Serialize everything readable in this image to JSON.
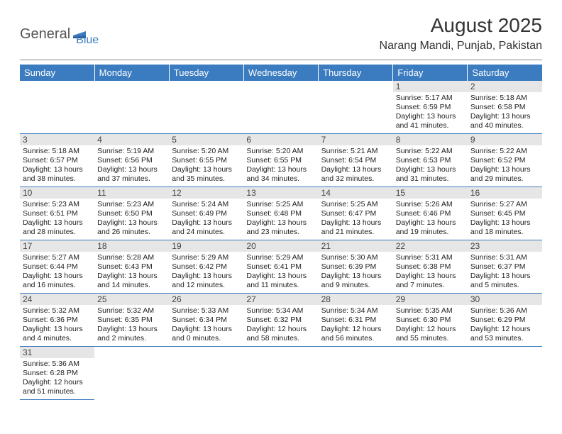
{
  "logo": {
    "part1": "General",
    "part2": "Blue"
  },
  "title": "August 2025",
  "location": "Narang Mandi, Punjab, Pakistan",
  "colors": {
    "header_bg": "#3b7bbf",
    "header_text": "#ffffff",
    "daynum_bg": "#e6e6e6",
    "cell_border": "#3b7bbf",
    "logo_gray": "#555555",
    "logo_blue": "#3b7bbf"
  },
  "weekdays": [
    "Sunday",
    "Monday",
    "Tuesday",
    "Wednesday",
    "Thursday",
    "Friday",
    "Saturday"
  ],
  "weeks": [
    [
      null,
      null,
      null,
      null,
      null,
      {
        "n": "1",
        "sr": "5:17 AM",
        "ss": "6:59 PM",
        "dl": "13 hours and 41 minutes."
      },
      {
        "n": "2",
        "sr": "5:18 AM",
        "ss": "6:58 PM",
        "dl": "13 hours and 40 minutes."
      }
    ],
    [
      {
        "n": "3",
        "sr": "5:18 AM",
        "ss": "6:57 PM",
        "dl": "13 hours and 38 minutes."
      },
      {
        "n": "4",
        "sr": "5:19 AM",
        "ss": "6:56 PM",
        "dl": "13 hours and 37 minutes."
      },
      {
        "n": "5",
        "sr": "5:20 AM",
        "ss": "6:55 PM",
        "dl": "13 hours and 35 minutes."
      },
      {
        "n": "6",
        "sr": "5:20 AM",
        "ss": "6:55 PM",
        "dl": "13 hours and 34 minutes."
      },
      {
        "n": "7",
        "sr": "5:21 AM",
        "ss": "6:54 PM",
        "dl": "13 hours and 32 minutes."
      },
      {
        "n": "8",
        "sr": "5:22 AM",
        "ss": "6:53 PM",
        "dl": "13 hours and 31 minutes."
      },
      {
        "n": "9",
        "sr": "5:22 AM",
        "ss": "6:52 PM",
        "dl": "13 hours and 29 minutes."
      }
    ],
    [
      {
        "n": "10",
        "sr": "5:23 AM",
        "ss": "6:51 PM",
        "dl": "13 hours and 28 minutes."
      },
      {
        "n": "11",
        "sr": "5:23 AM",
        "ss": "6:50 PM",
        "dl": "13 hours and 26 minutes."
      },
      {
        "n": "12",
        "sr": "5:24 AM",
        "ss": "6:49 PM",
        "dl": "13 hours and 24 minutes."
      },
      {
        "n": "13",
        "sr": "5:25 AM",
        "ss": "6:48 PM",
        "dl": "13 hours and 23 minutes."
      },
      {
        "n": "14",
        "sr": "5:25 AM",
        "ss": "6:47 PM",
        "dl": "13 hours and 21 minutes."
      },
      {
        "n": "15",
        "sr": "5:26 AM",
        "ss": "6:46 PM",
        "dl": "13 hours and 19 minutes."
      },
      {
        "n": "16",
        "sr": "5:27 AM",
        "ss": "6:45 PM",
        "dl": "13 hours and 18 minutes."
      }
    ],
    [
      {
        "n": "17",
        "sr": "5:27 AM",
        "ss": "6:44 PM",
        "dl": "13 hours and 16 minutes."
      },
      {
        "n": "18",
        "sr": "5:28 AM",
        "ss": "6:43 PM",
        "dl": "13 hours and 14 minutes."
      },
      {
        "n": "19",
        "sr": "5:29 AM",
        "ss": "6:42 PM",
        "dl": "13 hours and 12 minutes."
      },
      {
        "n": "20",
        "sr": "5:29 AM",
        "ss": "6:41 PM",
        "dl": "13 hours and 11 minutes."
      },
      {
        "n": "21",
        "sr": "5:30 AM",
        "ss": "6:39 PM",
        "dl": "13 hours and 9 minutes."
      },
      {
        "n": "22",
        "sr": "5:31 AM",
        "ss": "6:38 PM",
        "dl": "13 hours and 7 minutes."
      },
      {
        "n": "23",
        "sr": "5:31 AM",
        "ss": "6:37 PM",
        "dl": "13 hours and 5 minutes."
      }
    ],
    [
      {
        "n": "24",
        "sr": "5:32 AM",
        "ss": "6:36 PM",
        "dl": "13 hours and 4 minutes."
      },
      {
        "n": "25",
        "sr": "5:32 AM",
        "ss": "6:35 PM",
        "dl": "13 hours and 2 minutes."
      },
      {
        "n": "26",
        "sr": "5:33 AM",
        "ss": "6:34 PM",
        "dl": "13 hours and 0 minutes."
      },
      {
        "n": "27",
        "sr": "5:34 AM",
        "ss": "6:32 PM",
        "dl": "12 hours and 58 minutes."
      },
      {
        "n": "28",
        "sr": "5:34 AM",
        "ss": "6:31 PM",
        "dl": "12 hours and 56 minutes."
      },
      {
        "n": "29",
        "sr": "5:35 AM",
        "ss": "6:30 PM",
        "dl": "12 hours and 55 minutes."
      },
      {
        "n": "30",
        "sr": "5:36 AM",
        "ss": "6:29 PM",
        "dl": "12 hours and 53 minutes."
      }
    ],
    [
      {
        "n": "31",
        "sr": "5:36 AM",
        "ss": "6:28 PM",
        "dl": "12 hours and 51 minutes."
      },
      null,
      null,
      null,
      null,
      null,
      null
    ]
  ],
  "labels": {
    "sunrise": "Sunrise:",
    "sunset": "Sunset:",
    "daylight": "Daylight:"
  }
}
